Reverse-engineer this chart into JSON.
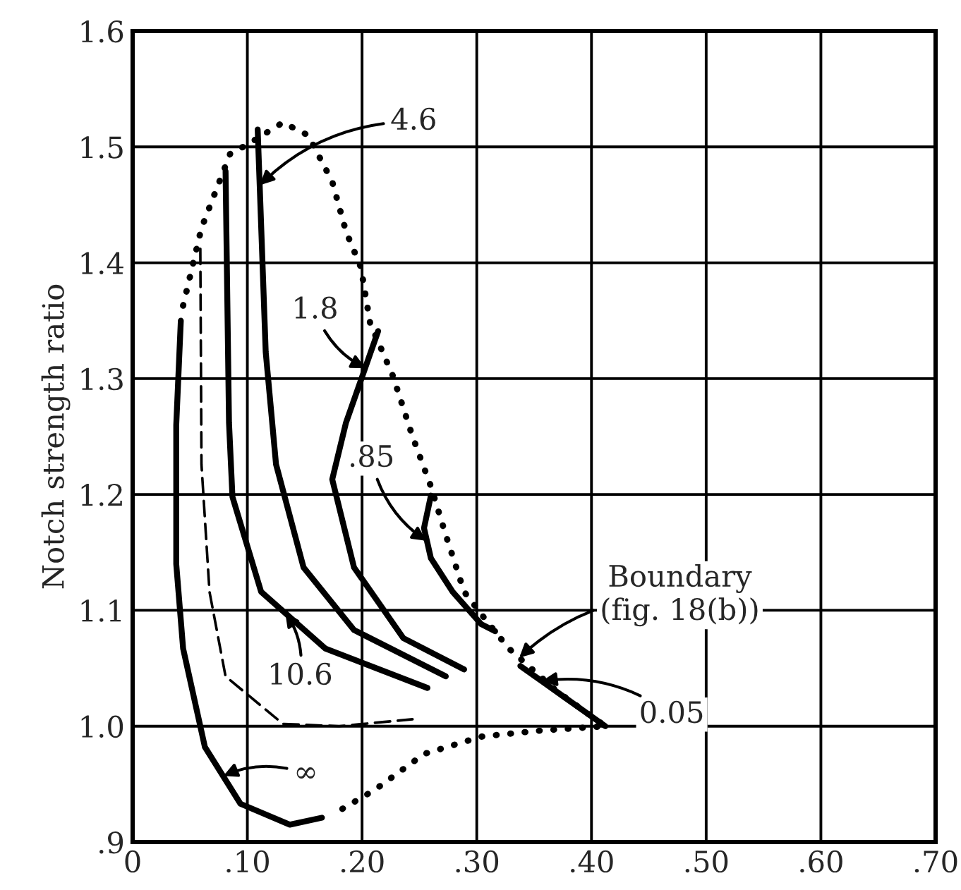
{
  "chart_data": {
    "type": "line",
    "ylabel": "Notch strength ratio",
    "xlim": [
      0,
      0.7
    ],
    "ylim": [
      0.9,
      1.6
    ],
    "xticks": [
      {
        "value": 0,
        "label": "0"
      },
      {
        "value": 0.1,
        "label": ".10"
      },
      {
        "value": 0.2,
        "label": ".20"
      },
      {
        "value": 0.3,
        "label": ".30"
      },
      {
        "value": 0.4,
        "label": ".40"
      },
      {
        "value": 0.5,
        "label": ".50"
      },
      {
        "value": 0.6,
        "label": ".60"
      },
      {
        "value": 0.7,
        "label": ".70"
      }
    ],
    "yticks": [
      {
        "value": 0.9,
        "label": ".9"
      },
      {
        "value": 1.0,
        "label": "1.0"
      },
      {
        "value": 1.1,
        "label": "1.1"
      },
      {
        "value": 1.2,
        "label": "1.2"
      },
      {
        "value": 1.3,
        "label": "1.3"
      },
      {
        "value": 1.4,
        "label": "1.4"
      },
      {
        "value": 1.5,
        "label": "1.5"
      },
      {
        "value": 1.6,
        "label": "1.6"
      }
    ],
    "grid": true,
    "marker": "none",
    "series": [
      {
        "color": "#000000",
        "line_style": "solid",
        "x": [
          0.042,
          0.038,
          0.038,
          0.044,
          0.063,
          0.094,
          0.137,
          0.165
        ],
        "values": [
          1.35,
          1.26,
          1.14,
          1.067,
          0.982,
          0.933,
          0.915,
          0.921
        ]
      },
      {
        "color": "#000000",
        "line_style": "dashed",
        "x": [
          0.059,
          0.06,
          0.067,
          0.081,
          0.131,
          0.18,
          0.244
        ],
        "values": [
          1.412,
          1.226,
          1.116,
          1.043,
          1.002,
          1.0,
          1.006
        ]
      },
      {
        "color": "#000000",
        "line_style": "solid",
        "x": [
          0.081,
          0.084,
          0.087,
          0.112,
          0.168,
          0.257
        ],
        "values": [
          1.479,
          1.262,
          1.198,
          1.116,
          1.067,
          1.033
        ]
      },
      {
        "color": "#000000",
        "line_style": "solid",
        "x": [
          0.109,
          0.116,
          0.125,
          0.149,
          0.193,
          0.273
        ],
        "values": [
          1.515,
          1.323,
          1.226,
          1.137,
          1.083,
          1.043
        ]
      },
      {
        "color": "#000000",
        "line_style": "solid",
        "x": [
          0.214,
          0.186,
          0.174,
          0.193,
          0.236,
          0.289
        ],
        "values": [
          1.341,
          1.262,
          1.213,
          1.137,
          1.076,
          1.049
        ]
      },
      {
        "color": "#000000",
        "line_style": "solid",
        "x": [
          0.26,
          0.254,
          0.26,
          0.279,
          0.304,
          0.316
        ],
        "values": [
          1.199,
          1.171,
          1.145,
          1.116,
          1.088,
          1.082
        ]
      },
      {
        "color": "#000000",
        "line_style": "solid",
        "x": [
          0.338,
          0.375,
          0.412
        ],
        "values": [
          1.052,
          1.026,
          1.0
        ]
      },
      {
        "color": "#000000",
        "line_style": "dotted",
        "x": [
          0.044,
          0.06,
          0.085,
          0.1,
          0.131,
          0.153,
          0.174,
          0.186,
          0.199,
          0.207,
          0.227,
          0.244,
          0.26,
          0.273,
          0.289,
          0.31,
          0.328,
          0.37,
          0.412,
          0.353,
          0.304,
          0.254,
          0.211,
          0.18
        ],
        "values": [
          1.363,
          1.43,
          1.494,
          1.502,
          1.521,
          1.51,
          1.47,
          1.427,
          1.396,
          1.348,
          1.302,
          1.25,
          1.207,
          1.165,
          1.116,
          1.089,
          1.067,
          1.03,
          1.0,
          0.996,
          0.991,
          0.976,
          0.945,
          0.927
        ]
      }
    ],
    "annotations": [
      {
        "text": "4.6",
        "x": 0.111,
        "y": 1.467
      },
      {
        "text": "1.8",
        "x": 0.203,
        "y": 1.309
      },
      {
        "text": ".85",
        "x": 0.256,
        "y": 1.16
      },
      {
        "text": "10.6",
        "x": 0.133,
        "y": 1.098
      },
      {
        "text": "∞",
        "x": 0.079,
        "y": 0.957
      },
      {
        "text": "Boundary\n(fig. 18(b))",
        "x": 0.337,
        "y": 1.059
      },
      {
        "text": "0.05",
        "x": 0.357,
        "y": 1.039
      }
    ]
  }
}
